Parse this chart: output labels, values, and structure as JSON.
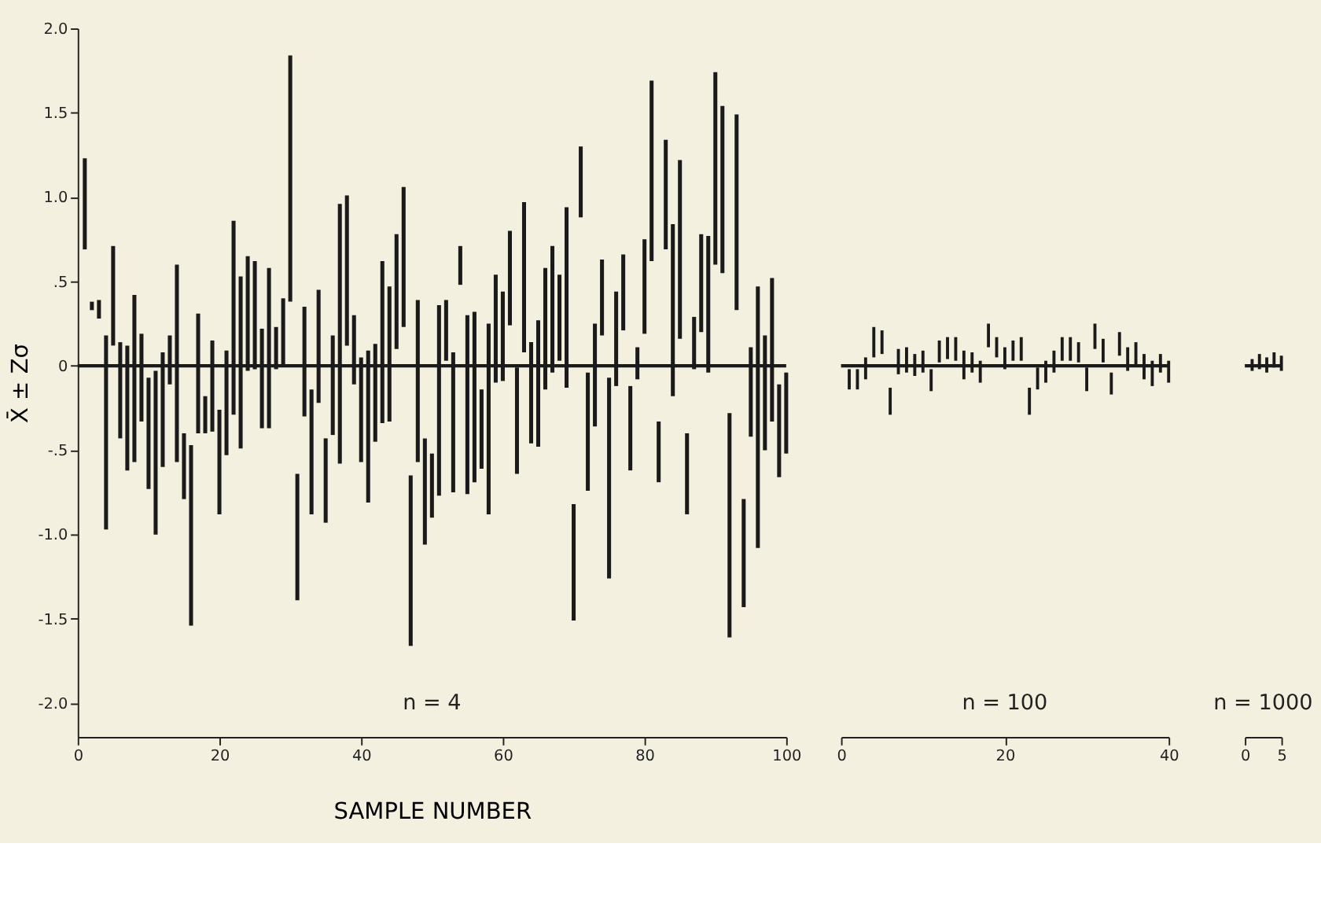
{
  "chart_data": [
    {
      "type": "bar",
      "xlabel": "SAMPLE NUMBER",
      "ylabel": "X̄ ± Zσ",
      "color": "#1a1a1a",
      "annotations": [
        "n = 4"
      ],
      "x": [
        1,
        2,
        3,
        4,
        5,
        6,
        7,
        8,
        9,
        10,
        11,
        12,
        13,
        14,
        15,
        16,
        17,
        18,
        19,
        20,
        21,
        22,
        23,
        24,
        25,
        26,
        27,
        28,
        29,
        30,
        31,
        32,
        33,
        34,
        35,
        36,
        37,
        38,
        39,
        40,
        41,
        42,
        43,
        44,
        45,
        46,
        47,
        48,
        49,
        50,
        51,
        52,
        53,
        54,
        55,
        56,
        57,
        58,
        59,
        60,
        61,
        62,
        63,
        64,
        65,
        66,
        67,
        68,
        69,
        70,
        71,
        72,
        73,
        74,
        75,
        76,
        77,
        78,
        79,
        80,
        81,
        82,
        83,
        84,
        85,
        86,
        87,
        88,
        89,
        90,
        91,
        92,
        93,
        94,
        95,
        96,
        97,
        98,
        99,
        100
      ],
      "base": [
        0.69,
        0.33,
        0.28,
        -0.97,
        0.12,
        -0.43,
        -0.62,
        -0.57,
        -0.33,
        -0.73,
        -1.0,
        -0.6,
        -0.11,
        -0.57,
        -0.79,
        -1.54,
        -0.4,
        -0.4,
        -0.39,
        -0.88,
        -0.53,
        -0.29,
        -0.49,
        -0.03,
        -0.02,
        -0.37,
        -0.37,
        -0.02,
        0,
        0.38,
        -1.39,
        -0.3,
        -0.88,
        -0.22,
        -0.93,
        -0.41,
        -0.58,
        0.12,
        -0.11,
        -0.57,
        -0.81,
        -0.45,
        -0.34,
        -0.33,
        0.1,
        0.23,
        -1.66,
        -0.57,
        -1.06,
        -0.9,
        -0.77,
        0.03,
        -0.75,
        0.48,
        -0.76,
        -0.69,
        -0.61,
        -0.88,
        -0.1,
        -0.09,
        0.24,
        -0.64,
        0.08,
        -0.46,
        -0.48,
        -0.14,
        -0.04,
        0.03,
        -0.13,
        -1.51,
        0.88,
        -0.74,
        -0.36,
        0.18,
        -1.26,
        -0.12,
        0.21,
        -0.62,
        -0.08,
        0.19,
        0.62,
        -0.69,
        0.69,
        -0.18,
        0.16,
        -0.88,
        -0.02,
        0.2,
        -0.04,
        0.6,
        0.55,
        -1.61,
        0.33,
        -1.43,
        -0.42,
        -1.08,
        -0.5,
        -0.33,
        -0.66,
        -0.52
      ],
      "values": [
        0.54,
        0.05,
        0.11,
        1.15,
        0.59,
        0.57,
        0.74,
        0.99,
        0.52,
        0.66,
        0.97,
        0.68,
        0.29,
        1.17,
        0.39,
        1.07,
        0.71,
        0.22,
        0.54,
        0.62,
        0.62,
        1.15,
        1.02,
        0.68,
        0.64,
        0.59,
        0.95,
        0.25,
        0.4,
        1.46,
        0.75,
        0.65,
        0.74,
        0.67,
        0.5,
        0.59,
        1.54,
        0.89,
        0.41,
        0.62,
        0.9,
        0.58,
        0.96,
        0.8,
        0.68,
        0.83,
        1.01,
        0.96,
        0.63,
        0.38,
        1.13,
        0.36,
        0.83,
        0.23,
        1.06,
        1.01,
        0.47,
        1.13,
        0.64,
        0.53,
        0.56,
        0.63,
        0.89,
        0.6,
        0.75,
        0.72,
        0.75,
        0.51,
        1.07,
        0.69,
        0.42,
        0.7,
        0.61,
        0.45,
        1.19,
        0.56,
        0.45,
        0.5,
        0.19,
        0.56,
        1.07,
        0.36,
        0.65,
        1.02,
        1.06,
        0.48,
        0.31,
        0.58,
        0.81,
        1.14,
        0.99,
        1.33,
        1.16,
        0.64,
        0.53,
        1.55,
        0.68,
        0.85,
        0.55,
        0.48
      ],
      "xlim": [
        0,
        100
      ],
      "xticks": [
        0,
        20,
        40,
        60,
        80,
        100
      ],
      "ylim": [
        -2.2,
        2.0
      ],
      "yticks": [
        {
          "value": 2.0,
          "label": "2.0"
        },
        1.5,
        {
          "value": 1.0,
          "label": "1.0"
        },
        {
          "value": 0.5,
          "label": ".5"
        },
        0,
        {
          "value": -0.5,
          "label": "-.5"
        },
        {
          "value": -1.0,
          "label": "-1.0"
        },
        -1.5,
        {
          "value": -2.0,
          "label": "-2.0"
        }
      ],
      "ref_lines": [
        {
          "axis": "y",
          "value": 0,
          "color": "#1a1a1a"
        }
      ]
    },
    {
      "type": "bar",
      "color": "#1a1a1a",
      "annotations": [
        "n = 100"
      ],
      "tick_labels": "x",
      "x": [
        1,
        2,
        3,
        4,
        5,
        6,
        7,
        8,
        9,
        10,
        11,
        12,
        13,
        14,
        15,
        16,
        17,
        18,
        19,
        20,
        21,
        22,
        23,
        24,
        25,
        26,
        27,
        28,
        29,
        30,
        31,
        32,
        33,
        34,
        35,
        36,
        37,
        38,
        39,
        40
      ],
      "base": [
        -0.14,
        -0.14,
        -0.08,
        0.05,
        0.07,
        -0.29,
        -0.05,
        -0.04,
        -0.06,
        -0.04,
        -0.15,
        0.02,
        0.04,
        0.03,
        -0.08,
        -0.04,
        -0.1,
        0.11,
        0.05,
        -0.02,
        0.03,
        0.03,
        -0.29,
        -0.14,
        -0.1,
        -0.04,
        0.03,
        0.03,
        0.02,
        -0.15,
        0.1,
        0.02,
        -0.17,
        0.06,
        -0.03,
        0.01,
        -0.08,
        -0.12,
        -0.04,
        -0.1
      ],
      "values": [
        0.12,
        0.12,
        0.13,
        0.18,
        0.14,
        0.16,
        0.15,
        0.15,
        0.13,
        0.13,
        0.13,
        0.13,
        0.13,
        0.14,
        0.17,
        0.12,
        0.13,
        0.14,
        0.12,
        0.13,
        0.12,
        0.14,
        0.16,
        0.13,
        0.13,
        0.13,
        0.14,
        0.14,
        0.12,
        0.14,
        0.15,
        0.14,
        0.13,
        0.14,
        0.14,
        0.13,
        0.15,
        0.15,
        0.11,
        0.13
      ],
      "xlim": [
        0,
        40
      ],
      "xticks": [
        0,
        20,
        40
      ],
      "ylim": [
        -2.2,
        2.0
      ],
      "ref_lines": [
        {
          "axis": "y",
          "value": 0,
          "color": "#1a1a1a"
        }
      ]
    },
    {
      "type": "bar",
      "color": "#1a1a1a",
      "annotations": [
        "n = 1000"
      ],
      "tick_labels": "x",
      "x": [
        1,
        2,
        3,
        4,
        5
      ],
      "base": [
        -0.03,
        -0.02,
        -0.04,
        -0.01,
        -0.03
      ],
      "values": [
        0.07,
        0.09,
        0.09,
        0.09,
        0.09
      ],
      "xlim": [
        0,
        5
      ],
      "xticks": [
        0,
        5
      ],
      "ylim": [
        -2.2,
        2.0
      ],
      "ref_lines": [
        {
          "axis": "y",
          "value": 0,
          "color": "#1a1a1a"
        }
      ]
    }
  ]
}
